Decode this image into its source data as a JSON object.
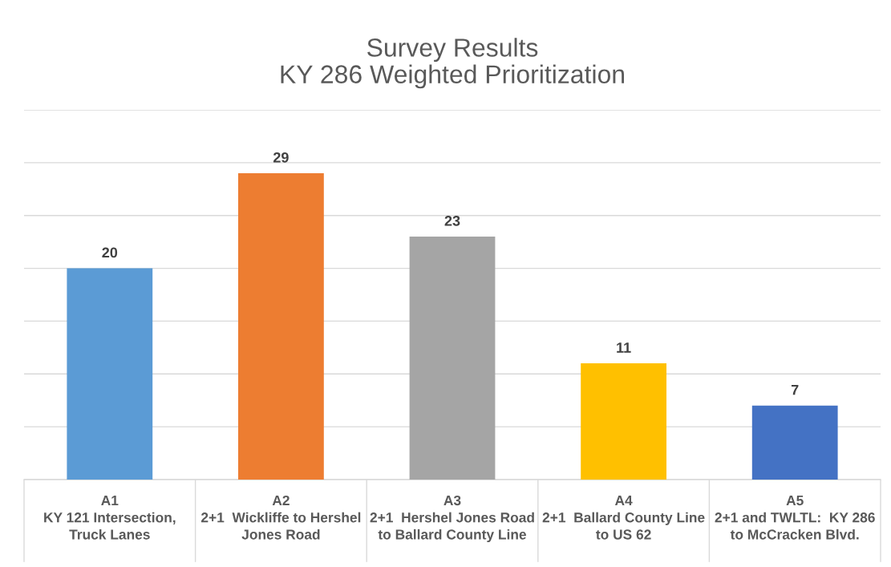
{
  "chart_data": {
    "type": "bar",
    "title": "Survey Results\nKY 286 Weighted Prioritization",
    "categories": [
      "A1\nKY 121 Intersection,\nTruck Lanes",
      "A2\n2+1  Wickliffe to Hershel\nJones Road",
      "A3\n2+1  Hershel Jones Road\nto Ballard County Line",
      "A4\n2+1  Ballard County Line\nto US 62",
      "A5\n2+1 and TWLTL:  KY 286\nto McCracken Blvd."
    ],
    "values": [
      20,
      29,
      23,
      11,
      7
    ],
    "colors": [
      "#5b9bd5",
      "#ed7d31",
      "#a5a5a5",
      "#ffc000",
      "#4472c4"
    ],
    "ylim": [
      0,
      35
    ],
    "yticks": [
      0,
      5,
      10,
      15,
      20,
      25,
      30,
      35
    ],
    "grid": "y",
    "tick_labels": "x",
    "data_labels": true
  }
}
